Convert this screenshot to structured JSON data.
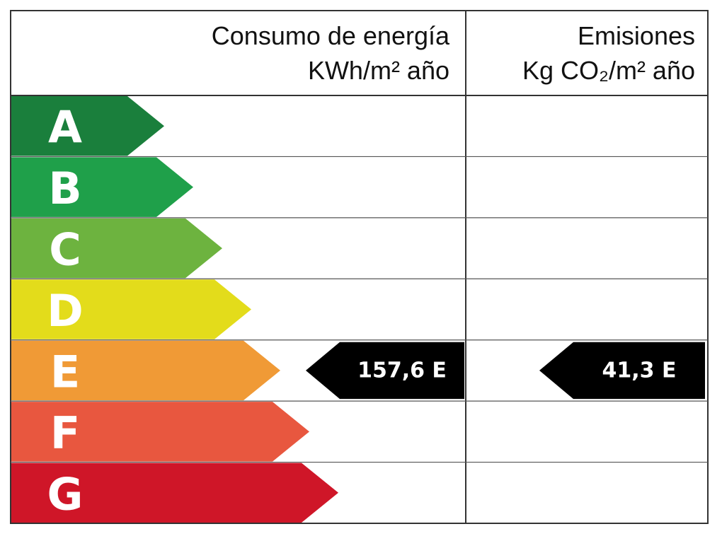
{
  "header": {
    "energy_title": "Consumo de energía",
    "energy_unit": "KWh/m² año",
    "emissions_title": "Emisiones",
    "emissions_unit": "Kg CO₂/m² año"
  },
  "classes": [
    {
      "letter": "A",
      "color": "#1a7f3c"
    },
    {
      "letter": "B",
      "color": "#1fa04a"
    },
    {
      "letter": "C",
      "color": "#6db33f"
    },
    {
      "letter": "D",
      "color": "#e3dc1b"
    },
    {
      "letter": "E",
      "color": "#f09a36",
      "energy": "157,6 E",
      "emissions": "41,3 E"
    },
    {
      "letter": "F",
      "color": "#e8573f"
    },
    {
      "letter": "G",
      "color": "#cf1628"
    }
  ]
}
